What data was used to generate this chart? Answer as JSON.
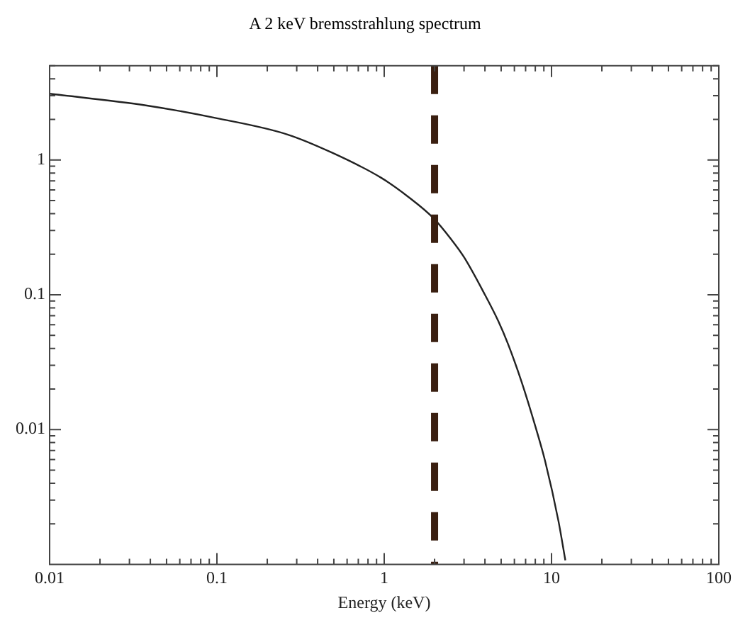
{
  "chart_data": {
    "type": "line",
    "title": "A 2 keV bremsstrahlung spectrum",
    "xlabel": "Energy (keV)",
    "log": "xy",
    "grid": false,
    "legend": false,
    "marker": "none",
    "line_style": "solid",
    "xlim": [
      0.01,
      100
    ],
    "ylim": [
      0.001,
      5
    ],
    "xticks": [
      0.01,
      {
        "value": 0.02,
        "label": null
      },
      {
        "value": 0.03,
        "label": null
      },
      {
        "value": 0.04,
        "label": null
      },
      {
        "value": 0.05,
        "label": null
      },
      {
        "value": 0.06,
        "label": null
      },
      {
        "value": 0.07,
        "label": null
      },
      {
        "value": 0.08,
        "label": null
      },
      {
        "value": 0.09,
        "label": null
      },
      0.1,
      {
        "value": 0.2,
        "label": null
      },
      {
        "value": 0.3,
        "label": null
      },
      {
        "value": 0.4,
        "label": null
      },
      {
        "value": 0.5,
        "label": null
      },
      {
        "value": 0.6,
        "label": null
      },
      {
        "value": 0.7,
        "label": null
      },
      {
        "value": 0.8,
        "label": null
      },
      {
        "value": 0.9,
        "label": null
      },
      1,
      {
        "value": 2,
        "label": null
      },
      {
        "value": 3,
        "label": null
      },
      {
        "value": 4,
        "label": null
      },
      {
        "value": 5,
        "label": null
      },
      {
        "value": 6,
        "label": null
      },
      {
        "value": 7,
        "label": null
      },
      {
        "value": 8,
        "label": null
      },
      {
        "value": 9,
        "label": null
      },
      10,
      {
        "value": 20,
        "label": null
      },
      {
        "value": 30,
        "label": null
      },
      {
        "value": 40,
        "label": null
      },
      {
        "value": 50,
        "label": null
      },
      {
        "value": 60,
        "label": null
      },
      {
        "value": 70,
        "label": null
      },
      {
        "value": 80,
        "label": null
      },
      {
        "value": 90,
        "label": null
      },
      100
    ],
    "yticks": [
      {
        "value": 0.002,
        "label": null
      },
      {
        "value": 0.003,
        "label": null
      },
      {
        "value": 0.004,
        "label": null
      },
      {
        "value": 0.005,
        "label": null
      },
      {
        "value": 0.006,
        "label": null
      },
      {
        "value": 0.007,
        "label": null
      },
      {
        "value": 0.008,
        "label": null
      },
      {
        "value": 0.009,
        "label": null
      },
      0.01,
      {
        "value": 0.02,
        "label": null
      },
      {
        "value": 0.03,
        "label": null
      },
      {
        "value": 0.04,
        "label": null
      },
      {
        "value": 0.05,
        "label": null
      },
      {
        "value": 0.06,
        "label": null
      },
      {
        "value": 0.07,
        "label": null
      },
      {
        "value": 0.08,
        "label": null
      },
      {
        "value": 0.09,
        "label": null
      },
      0.1,
      {
        "value": 0.2,
        "label": null
      },
      {
        "value": 0.3,
        "label": null
      },
      {
        "value": 0.4,
        "label": null
      },
      {
        "value": 0.5,
        "label": null
      },
      {
        "value": 0.6,
        "label": null
      },
      {
        "value": 0.7,
        "label": null
      },
      {
        "value": 0.8,
        "label": null
      },
      {
        "value": 0.9,
        "label": null
      },
      1,
      {
        "value": 2,
        "label": null
      },
      {
        "value": 3,
        "label": null
      },
      {
        "value": 4,
        "label": null
      },
      {
        "value": 5,
        "label": null
      }
    ],
    "series": [
      {
        "color": "#222222",
        "x": [
          0.01,
          0.0376,
          0.1,
          0.262,
          0.49,
          0.955,
          1.4,
          1.97,
          2.5,
          3,
          4,
          4.8,
          5.5,
          6.64,
          8,
          9.17,
          11,
          12.1
        ],
        "values": [
          3.1,
          2.54,
          2.04,
          1.55,
          1.13,
          0.74,
          0.53,
          0.37,
          0.26,
          0.19,
          0.1,
          0.064,
          0.043,
          0.0224,
          0.0106,
          0.0058,
          0.0021,
          0.00107
        ]
      }
    ],
    "ref_lines": [
      {
        "axis": "x",
        "value": 2,
        "color": "#3a1f10",
        "line_style": "dashed"
      }
    ]
  }
}
